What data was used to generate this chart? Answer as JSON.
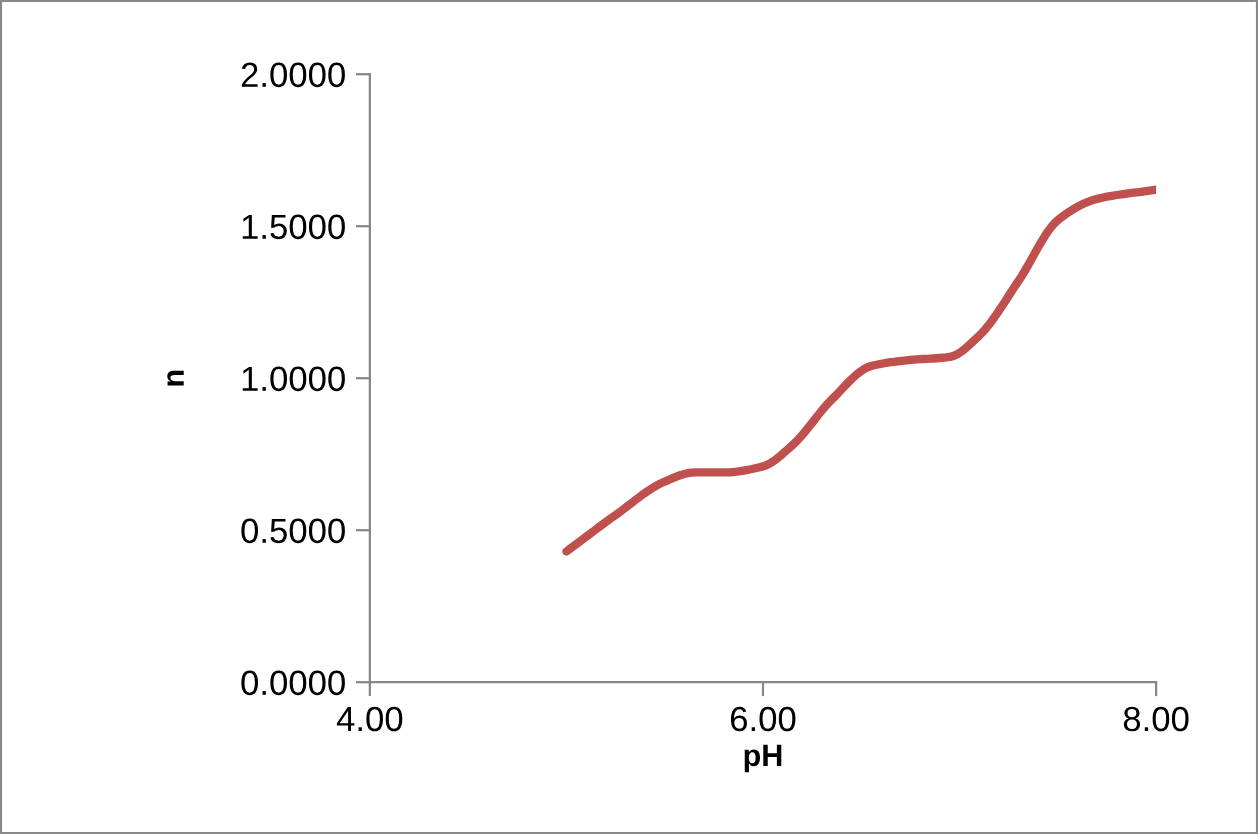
{
  "chart_data": {
    "type": "line",
    "xlabel": "pH",
    "ylabel": "n",
    "x": [
      5.0,
      5.25,
      5.5,
      5.65,
      5.8,
      6.0,
      6.15,
      6.35,
      6.55,
      6.75,
      6.95,
      7.1,
      7.3,
      7.5,
      7.7,
      8.0
    ],
    "series": [
      {
        "color": "#c0504d",
        "values": [
          0.43,
          0.55,
          0.66,
          0.69,
          0.69,
          0.71,
          0.78,
          0.93,
          1.04,
          1.06,
          1.07,
          1.14,
          1.32,
          1.52,
          1.59,
          1.62
        ]
      }
    ],
    "xlim": [
      4,
      8
    ],
    "xticks": [
      {
        "value": 4,
        "label": "4.00"
      },
      {
        "value": 6,
        "label": "6.00"
      },
      {
        "value": 8,
        "label": "8.00"
      }
    ],
    "ylim": [
      0,
      2
    ],
    "yticks": [
      {
        "value": 0,
        "label": "0.0000"
      },
      {
        "value": 0.5,
        "label": "0.5000"
      },
      {
        "value": 1,
        "label": "1.0000"
      },
      {
        "value": 1.5,
        "label": "1.5000"
      },
      {
        "value": 2,
        "label": "2.0000"
      }
    ],
    "grid": false,
    "marker": "none",
    "line_style": "solid"
  }
}
